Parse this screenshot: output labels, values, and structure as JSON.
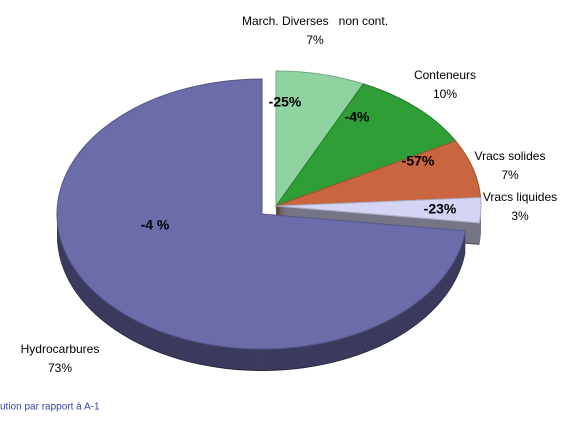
{
  "chart_data": {
    "type": "pie",
    "categories": [
      "March. Diverses   non cont.",
      "Conteneurs",
      "Vracs solides",
      "Vracs liquides",
      "Hydrocarbures"
    ],
    "values": [
      7,
      10,
      7,
      3,
      73
    ],
    "value_labels": [
      "7%",
      "10%",
      "7%",
      "3%",
      "73%"
    ],
    "evolution_labels": [
      "-25%",
      "-4%",
      "-57%",
      "-23%",
      "-4 %"
    ],
    "colors": [
      "#8fd4a0",
      "#2f9e36",
      "#c9653f",
      "#d4d4f4",
      "#6c6cab"
    ],
    "footnote": "ution par rapport à A-1"
  }
}
